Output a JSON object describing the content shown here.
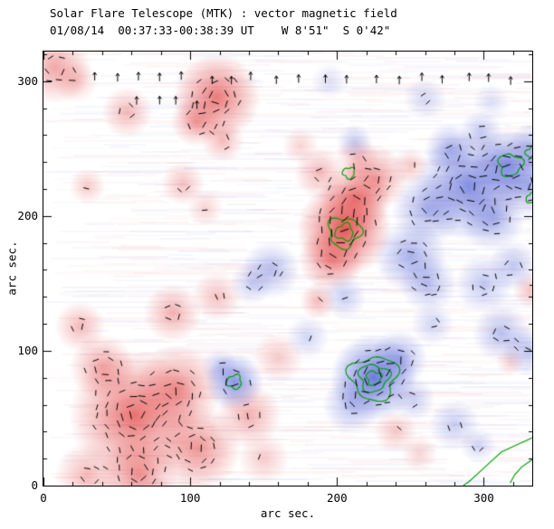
{
  "chart_data": {
    "type": "heatmap",
    "title": "Solar Flare Telescope (MTK) : vector magnetic field",
    "subtitle": "01/08/14  00:37:33-00:38:39 UT    W 8'51\"  S 0'42\"",
    "xlabel": "arc sec.",
    "ylabel": "arc sec.",
    "xlim": [
      0,
      333
    ],
    "ylim": [
      0,
      322
    ],
    "xticks": [
      "0",
      "100",
      "200",
      "300"
    ],
    "xtick_values": [
      0,
      100,
      200,
      300
    ],
    "yticks": [
      "0",
      "100",
      "200",
      "300"
    ],
    "ytick_values": [
      0,
      100,
      200,
      300
    ],
    "minor_tick_step": 20,
    "seed": 42,
    "colors": {
      "positive": "#e03838",
      "negative": "#5464d0",
      "positive_rgb": "226,60,60",
      "negative_rgb": "84,100,215",
      "contour": "#00a000",
      "vector": "#000000",
      "frame": "#000000"
    },
    "noise": {
      "row_step": 2,
      "segs_min": 2,
      "segs_max": 5,
      "alpha_min": 0.02,
      "alpha_max": 0.06
    },
    "vectors": {
      "grid_step": 8,
      "threshold": 0.22,
      "jitter": 4
    },
    "blob_fields": [
      "x",
      "y",
      "sigma",
      "amplitude",
      "polarity"
    ],
    "blobs": [
      [
        8,
        310,
        10,
        0.5,
        1
      ],
      [
        22,
        300,
        6,
        0.3,
        1
      ],
      [
        57,
        277,
        7,
        0.4,
        1
      ],
      [
        118,
        288,
        12,
        0.75,
        1
      ],
      [
        104,
        270,
        7,
        0.5,
        1
      ],
      [
        122,
        256,
        6,
        0.4,
        1
      ],
      [
        30,
        222,
        5,
        0.3,
        1
      ],
      [
        95,
        224,
        6,
        0.35,
        1
      ],
      [
        110,
        206,
        5,
        0.25,
        1
      ],
      [
        205,
        190,
        13,
        0.95,
        1
      ],
      [
        212,
        212,
        10,
        0.7,
        1
      ],
      [
        196,
        168,
        9,
        0.6,
        1
      ],
      [
        226,
        228,
        9,
        0.55,
        1
      ],
      [
        188,
        232,
        7,
        0.4,
        1
      ],
      [
        214,
        243,
        6,
        0.35,
        1
      ],
      [
        250,
        237,
        5,
        0.3,
        1
      ],
      [
        187,
        137,
        5,
        0.4,
        1
      ],
      [
        175,
        252,
        5,
        0.25,
        1
      ],
      [
        62,
        52,
        18,
        0.8,
        1
      ],
      [
        92,
        72,
        12,
        0.6,
        1
      ],
      [
        40,
        88,
        9,
        0.5,
        1
      ],
      [
        105,
        28,
        12,
        0.6,
        1
      ],
      [
        140,
        52,
        9,
        0.45,
        1
      ],
      [
        65,
        8,
        11,
        0.6,
        1
      ],
      [
        25,
        118,
        7,
        0.4,
        1
      ],
      [
        88,
        128,
        8,
        0.45,
        1
      ],
      [
        118,
        140,
        7,
        0.35,
        1
      ],
      [
        30,
        8,
        9,
        0.4,
        1
      ],
      [
        160,
        95,
        7,
        0.3,
        1
      ],
      [
        150,
        20,
        7,
        0.3,
        1
      ],
      [
        240,
        40,
        6,
        0.3,
        1
      ],
      [
        256,
        24,
        5,
        0.25,
        1
      ],
      [
        332,
        145,
        5,
        0.35,
        1
      ],
      [
        318,
        92,
        4,
        0.25,
        1
      ],
      [
        290,
        222,
        15,
        0.8,
        -1
      ],
      [
        316,
        238,
        10,
        0.75,
        -1
      ],
      [
        262,
        205,
        10,
        0.55,
        -1
      ],
      [
        306,
        198,
        9,
        0.5,
        -1
      ],
      [
        330,
        222,
        9,
        0.55,
        -1
      ],
      [
        277,
        250,
        7,
        0.5,
        -1
      ],
      [
        298,
        262,
        6,
        0.4,
        -1
      ],
      [
        250,
        170,
        10,
        0.55,
        -1
      ],
      [
        262,
        150,
        8,
        0.45,
        -1
      ],
      [
        300,
        150,
        8,
        0.4,
        -1
      ],
      [
        320,
        163,
        7,
        0.4,
        -1
      ],
      [
        312,
        113,
        8,
        0.45,
        -1
      ],
      [
        330,
        100,
        7,
        0.4,
        -1
      ],
      [
        225,
        80,
        12,
        0.95,
        -1
      ],
      [
        242,
        94,
        8,
        0.55,
        -1
      ],
      [
        210,
        60,
        8,
        0.45,
        -1
      ],
      [
        252,
        64,
        6,
        0.35,
        -1
      ],
      [
        130,
        77,
        8,
        0.75,
        -1
      ],
      [
        120,
        88,
        5,
        0.35,
        -1
      ],
      [
        155,
        160,
        8,
        0.45,
        -1
      ],
      [
        142,
        150,
        6,
        0.35,
        -1
      ],
      [
        205,
        140,
        6,
        0.35,
        -1
      ],
      [
        212,
        255,
        5,
        0.35,
        -1
      ],
      [
        280,
        45,
        7,
        0.35,
        -1
      ],
      [
        296,
        30,
        5,
        0.3,
        -1
      ],
      [
        180,
        110,
        6,
        0.3,
        -1
      ],
      [
        265,
        120,
        6,
        0.3,
        -1
      ],
      [
        333,
        250,
        7,
        0.5,
        -1
      ],
      [
        195,
        300,
        5,
        0.22,
        -1
      ],
      [
        260,
        287,
        6,
        0.28,
        -1
      ],
      [
        305,
        285,
        5,
        0.22,
        -1
      ]
    ],
    "contour_fields": [
      "x",
      "y",
      "r"
    ],
    "contours": [
      [
        205,
        188,
        6
      ],
      [
        205,
        188,
        11
      ],
      [
        225,
        80,
        5
      ],
      [
        225,
        80,
        10
      ],
      [
        225,
        80,
        16
      ],
      [
        130,
        77,
        5
      ],
      [
        318,
        238,
        8
      ],
      [
        208,
        232,
        4
      ],
      [
        333,
        213,
        4
      ],
      [
        334,
        247,
        5
      ]
    ],
    "contour_paths": [
      [
        [
          334,
          36
        ],
        [
          322,
          30
        ],
        [
          312,
          25
        ],
        [
          304,
          17
        ],
        [
          296,
          9
        ],
        [
          290,
          3
        ],
        [
          286,
          0
        ]
      ],
      [
        [
          334,
          20
        ],
        [
          326,
          14
        ],
        [
          321,
          8
        ],
        [
          318,
          2
        ]
      ]
    ],
    "arrow_rows": [
      {
        "y": 302,
        "x0": 16,
        "x1": 332,
        "step": 16,
        "skip": 0.25
      },
      {
        "y": 284,
        "x0": 62,
        "x1": 110,
        "step": 15,
        "skip": 0
      }
    ]
  }
}
